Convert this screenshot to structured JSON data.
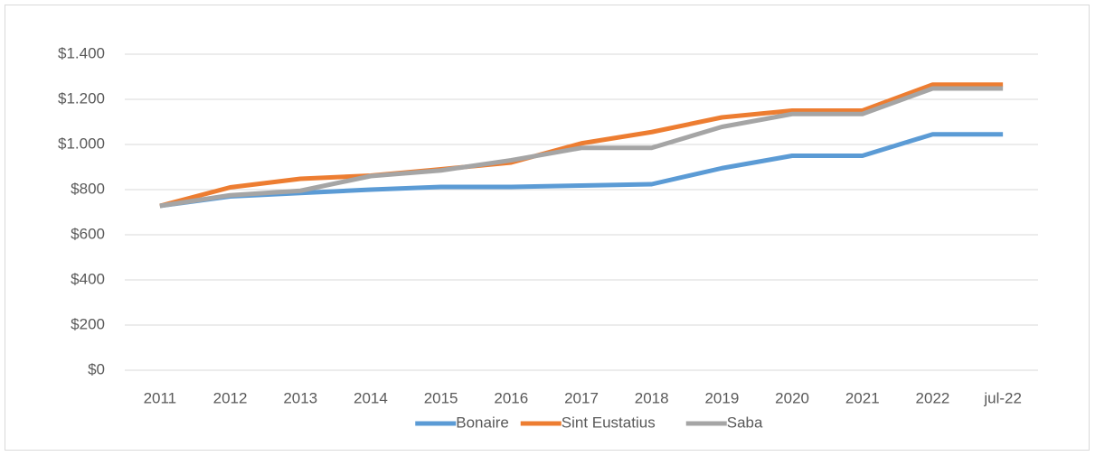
{
  "chart_data": {
    "type": "line",
    "categories": [
      "2011",
      "2012",
      "2013",
      "2014",
      "2015",
      "2016",
      "2017",
      "2018",
      "2019",
      "2020",
      "2021",
      "2022",
      "jul-22"
    ],
    "series": [
      {
        "name": "Bonaire",
        "color": "#5b9bd5",
        "values": [
          728,
          770,
          785,
          800,
          812,
          812,
          818,
          824,
          895,
          950,
          950,
          1045,
          1045
        ]
      },
      {
        "name": "Sint Eustatius",
        "color": "#ed7d31",
        "values": [
          728,
          810,
          848,
          862,
          890,
          920,
          1005,
          1055,
          1120,
          1150,
          1150,
          1265,
          1265
        ]
      },
      {
        "name": "Saba",
        "color": "#a5a5a5",
        "values": [
          728,
          775,
          795,
          860,
          885,
          930,
          985,
          985,
          1078,
          1135,
          1135,
          1248,
          1248
        ]
      }
    ],
    "ylim": [
      0,
      1400
    ],
    "yticks": [
      {
        "value": 0,
        "label": "$0"
      },
      {
        "value": 200,
        "label": "$200"
      },
      {
        "value": 400,
        "label": "$400"
      },
      {
        "value": 600,
        "label": "$600"
      },
      {
        "value": 800,
        "label": "$800"
      },
      {
        "value": 1000,
        "label": "$1.000"
      },
      {
        "value": 1200,
        "label": "$1.200"
      },
      {
        "value": 1400,
        "label": "$1.400"
      }
    ],
    "grid": true,
    "legend": "bottom"
  }
}
